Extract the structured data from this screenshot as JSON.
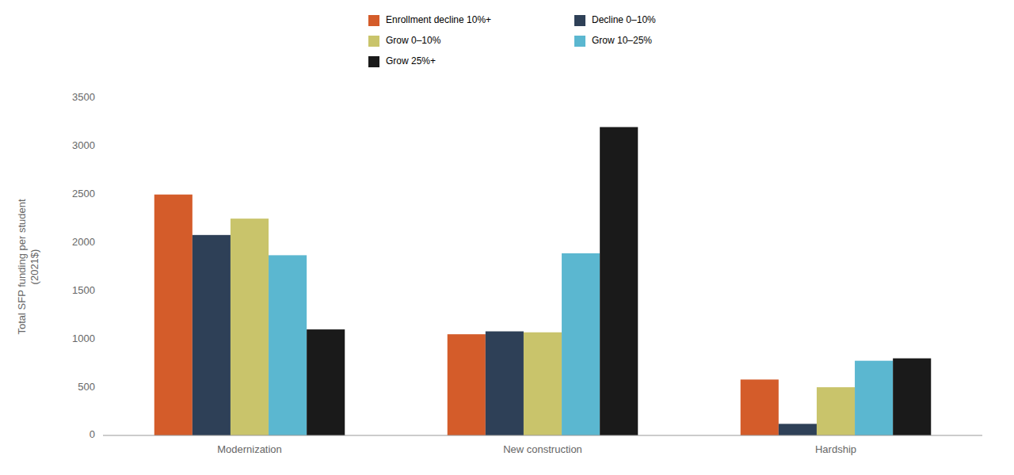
{
  "chart_data": {
    "type": "bar",
    "categories": [
      "Modernization",
      "New construction",
      "Hardship"
    ],
    "series": [
      {
        "name": "Enrollment decline 10%+",
        "color": "#D45C2A",
        "values": [
          2500,
          1050,
          580
        ]
      },
      {
        "name": "Decline 0–10%",
        "color": "#2E4057",
        "values": [
          2080,
          1080,
          120
        ]
      },
      {
        "name": "Grow 0–10%",
        "color": "#C9C46B",
        "values": [
          2250,
          1070,
          500
        ]
      },
      {
        "name": "Grow 10–25%",
        "color": "#5BB7D0",
        "values": [
          1870,
          1890,
          775
        ]
      },
      {
        "name": "Grow 25%+",
        "color": "#1A1A1A",
        "values": [
          1100,
          3200,
          800
        ]
      }
    ],
    "y_label": "Total SFP funding per student\n(2021$)",
    "ylim": [
      0,
      3500
    ],
    "yticks": [
      0,
      500,
      1000,
      1500,
      2000,
      2500,
      3000,
      3500
    ],
    "grid": false,
    "legend": "top"
  }
}
